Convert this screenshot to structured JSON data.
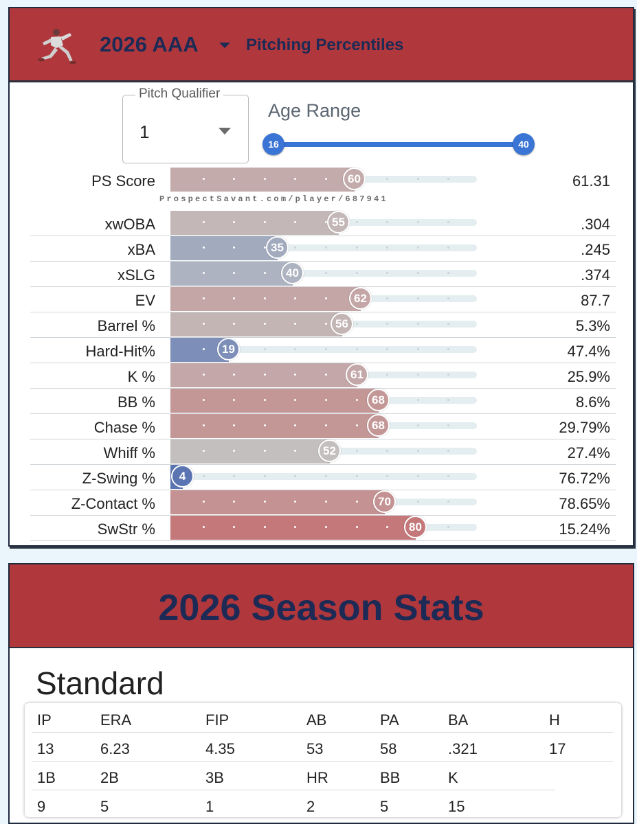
{
  "header": {
    "year_level": "2026 AAA",
    "subtitle": "Pitching Percentiles"
  },
  "filters": {
    "pitch_qualifier_label": "Pitch Qualifier",
    "pitch_qualifier_value": "1",
    "age_range_label": "Age Range",
    "age_min": "16",
    "age_max": "40"
  },
  "watermark": "ProspectSavant.com/player/687941",
  "percentiles": [
    {
      "label": "PS Score",
      "percentile": 60,
      "value": "61.31"
    },
    {
      "label": "xwOBA",
      "percentile": 55,
      "value": ".304"
    },
    {
      "label": "xBA",
      "percentile": 35,
      "value": ".245"
    },
    {
      "label": "xSLG",
      "percentile": 40,
      "value": ".374"
    },
    {
      "label": "EV",
      "percentile": 62,
      "value": "87.7"
    },
    {
      "label": "Barrel %",
      "percentile": 56,
      "value": "5.3%"
    },
    {
      "label": "Hard-Hit%",
      "percentile": 19,
      "value": "47.4%"
    },
    {
      "label": "K %",
      "percentile": 61,
      "value": "25.9%"
    },
    {
      "label": "BB %",
      "percentile": 68,
      "value": "8.6%"
    },
    {
      "label": "Chase %",
      "percentile": 68,
      "value": "29.79%"
    },
    {
      "label": "Whiff %",
      "percentile": 52,
      "value": "27.4%"
    },
    {
      "label": "Z-Swing %",
      "percentile": 4,
      "value": "76.72%"
    },
    {
      "label": "Z-Contact %",
      "percentile": 70,
      "value": "78.65%"
    },
    {
      "label": "SwStr %",
      "percentile": 80,
      "value": "15.24%"
    }
  ],
  "season": {
    "title": "2026 Season Stats",
    "section": "Standard",
    "row1_headers": [
      "IP",
      "ERA",
      "FIP",
      "AB",
      "PA",
      "BA",
      "H"
    ],
    "row1_values": [
      "13",
      "6.23",
      "4.35",
      "53",
      "58",
      ".321",
      "17"
    ],
    "row2_headers": [
      "1B",
      "2B",
      "3B",
      "HR",
      "BB",
      "K"
    ],
    "row2_values": [
      "9",
      "5",
      "1",
      "2",
      "5",
      "15"
    ]
  },
  "colors": {
    "header_red": "#b0383c",
    "title_navy": "#1c2a55",
    "slider_blue": "#3a74d4"
  }
}
